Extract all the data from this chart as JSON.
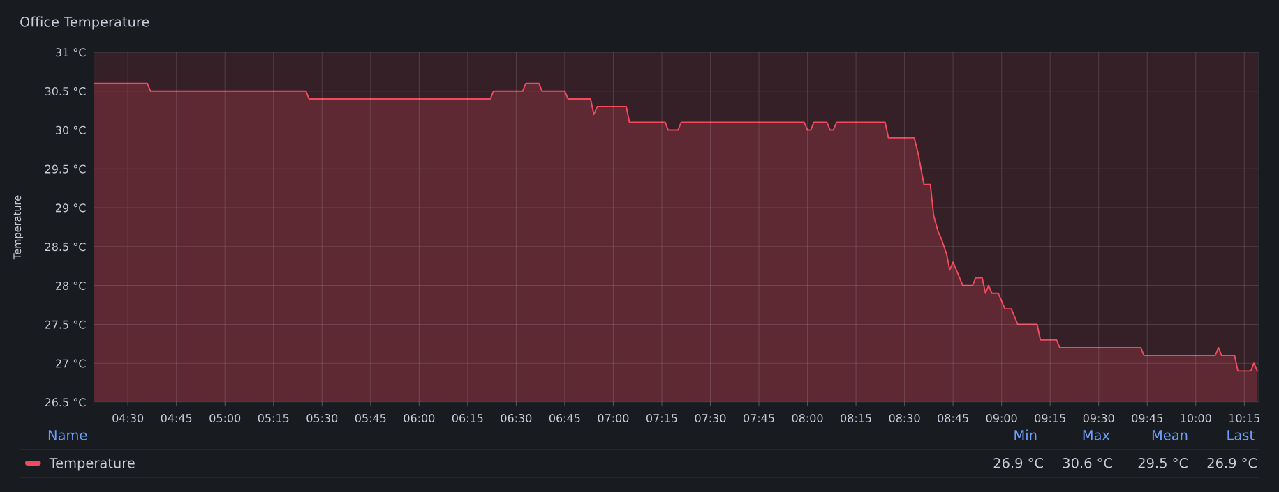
{
  "chart_data": {
    "type": "area",
    "title": "Office Temperature",
    "ylabel": "Temperature",
    "x": [
      4.325,
      4.6,
      4.617,
      5.417,
      5.433,
      6.367,
      6.383,
      6.533,
      6.55,
      6.617,
      6.633,
      6.75,
      6.767,
      6.883,
      6.9,
      6.917,
      7.067,
      7.083,
      7.267,
      7.283,
      7.333,
      7.35,
      7.983,
      8.0,
      8.017,
      8.033,
      8.1,
      8.117,
      8.133,
      8.15,
      8.4,
      8.417,
      8.55,
      8.57,
      8.6,
      8.633,
      8.65,
      8.672,
      8.69,
      8.717,
      8.733,
      8.75,
      8.8,
      8.85,
      8.867,
      8.9,
      8.917,
      8.933,
      8.95,
      8.983,
      9.017,
      9.05,
      9.083,
      9.183,
      9.2,
      9.283,
      9.3,
      9.717,
      9.733,
      10.1,
      10.117,
      10.133,
      10.2,
      10.217,
      10.283,
      10.3,
      10.317
    ],
    "series": [
      {
        "name": "Temperature",
        "color": "#f2495c",
        "values": [
          30.6,
          30.6,
          30.5,
          30.5,
          30.4,
          30.4,
          30.5,
          30.5,
          30.6,
          30.6,
          30.5,
          30.5,
          30.4,
          30.4,
          30.2,
          30.3,
          30.3,
          30.1,
          30.1,
          30.0,
          30.0,
          30.1,
          30.1,
          30.0,
          30.0,
          30.1,
          30.1,
          30.0,
          30.0,
          30.1,
          30.1,
          29.9,
          29.9,
          29.7,
          29.3,
          29.3,
          28.9,
          28.7,
          28.6,
          28.4,
          28.2,
          28.3,
          28.0,
          28.0,
          28.1,
          28.1,
          27.9,
          28.0,
          27.9,
          27.9,
          27.7,
          27.7,
          27.5,
          27.5,
          27.3,
          27.3,
          27.2,
          27.2,
          27.1,
          27.1,
          27.2,
          27.1,
          27.1,
          26.9,
          26.9,
          27.0,
          26.9
        ]
      }
    ],
    "xlim": [
      4.325,
      10.323
    ],
    "xticks": [
      {
        "value": 4.5,
        "label": "04:30"
      },
      {
        "value": 4.75,
        "label": "04:45"
      },
      {
        "value": 5,
        "label": "05:00"
      },
      {
        "value": 5.25,
        "label": "05:15"
      },
      {
        "value": 5.5,
        "label": "05:30"
      },
      {
        "value": 5.75,
        "label": "05:45"
      },
      {
        "value": 6,
        "label": "06:00"
      },
      {
        "value": 6.25,
        "label": "06:15"
      },
      {
        "value": 6.5,
        "label": "06:30"
      },
      {
        "value": 6.75,
        "label": "06:45"
      },
      {
        "value": 7,
        "label": "07:00"
      },
      {
        "value": 7.25,
        "label": "07:15"
      },
      {
        "value": 7.5,
        "label": "07:30"
      },
      {
        "value": 7.75,
        "label": "07:45"
      },
      {
        "value": 8,
        "label": "08:00"
      },
      {
        "value": 8.25,
        "label": "08:15"
      },
      {
        "value": 8.5,
        "label": "08:30"
      },
      {
        "value": 8.75,
        "label": "08:45"
      },
      {
        "value": 9,
        "label": "09:00"
      },
      {
        "value": 9.25,
        "label": "09:15"
      },
      {
        "value": 9.5,
        "label": "09:30"
      },
      {
        "value": 9.75,
        "label": "09:45"
      },
      {
        "value": 10,
        "label": "10:00"
      },
      {
        "value": 10.25,
        "label": "10:15"
      }
    ],
    "ylim": [
      26.5,
      31
    ],
    "yticks": [
      {
        "value": 26.5,
        "label": "26.5 °C"
      },
      {
        "value": 27,
        "label": "27 °C"
      },
      {
        "value": 27.5,
        "label": "27.5 °C"
      },
      {
        "value": 28,
        "label": "28 °C"
      },
      {
        "value": 28.5,
        "label": "28.5 °C"
      },
      {
        "value": 29,
        "label": "29 °C"
      },
      {
        "value": 29.5,
        "label": "29.5 °C"
      },
      {
        "value": 30,
        "label": "30 °C"
      },
      {
        "value": 30.5,
        "label": "30.5 °C"
      },
      {
        "value": 31,
        "label": "31 °C"
      }
    ],
    "grid": true,
    "legend": "bottom",
    "annotations": [
      "Name",
      "Min",
      "Max",
      "Mean",
      "Last",
      "26.9 °C",
      "30.6 °C",
      "29.5 °C",
      "26.9 °C"
    ]
  }
}
